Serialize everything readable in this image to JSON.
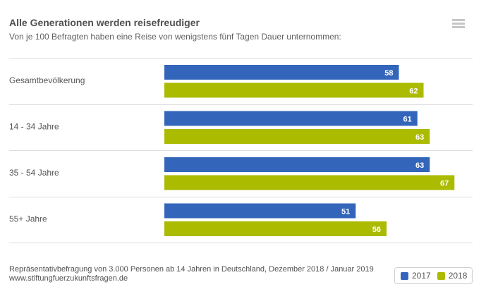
{
  "header": {
    "title": "Alle Generationen werden reisefreudiger",
    "subtitle": "Von je 100 Befragten haben eine Reise von wenigstens fünf Tagen Dauer unternommen:",
    "menu_icon": "hamburger-menu-icon"
  },
  "footer": {
    "source": "Repräsentativbefragung von 3.000 Personen ab 14 Jahren in Deutschland, Dezember 2018 / Januar 2019",
    "website": "www.stiftungfuerzukunftsfragen.de"
  },
  "colors": {
    "2017": "#3366bb",
    "2018": "#aabb00",
    "gridline": "#dddddd"
  },
  "chart_data": {
    "type": "bar",
    "orientation": "horizontal",
    "title": "Alle Generationen werden reisefreudiger",
    "subtitle": "Von je 100 Befragten haben eine Reise von wenigstens fünf Tagen Dauer unternommen:",
    "categories": [
      "Gesamtbevölkerung",
      "14 - 34 Jahre",
      "35 - 54 Jahre",
      "55+ Jahre"
    ],
    "series": [
      {
        "name": "2017",
        "color": "#3366bb",
        "values": [
          58,
          61,
          63,
          51
        ]
      },
      {
        "name": "2018",
        "color": "#aabb00",
        "values": [
          62,
          63,
          67,
          56
        ]
      }
    ],
    "xlim": [
      20,
      70
    ],
    "data_labels": true,
    "grid": "category separators",
    "legend": {
      "position": "bottom-right",
      "entries": [
        "2017",
        "2018"
      ]
    },
    "xlabel": "",
    "ylabel": ""
  }
}
